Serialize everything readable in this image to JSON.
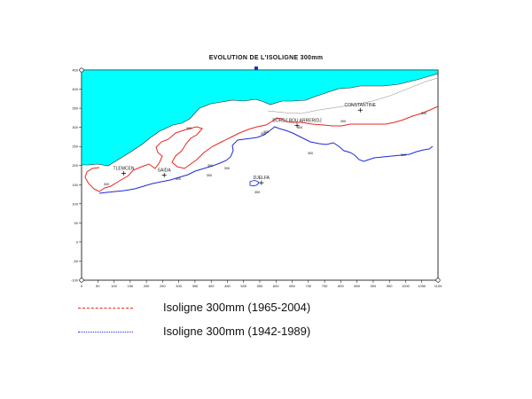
{
  "title": "EVOLUTION DE L'ISOLIGNE 300mm",
  "map": {
    "x_ticks": [
      "0",
      "50",
      "100",
      "150",
      "200",
      "250",
      "300",
      "350",
      "400",
      "450",
      "500",
      "550",
      "600",
      "650",
      "700",
      "750",
      "800",
      "850",
      "900",
      "950",
      "1000",
      "1050",
      "1100"
    ],
    "y_ticks": [
      "450",
      "400",
      "350",
      "300",
      "250",
      "200",
      "150",
      "100",
      "50",
      "0",
      "-50",
      "-100"
    ],
    "sea_color": "#00ffff",
    "series": [
      {
        "name": "Isoligne 300mm (1965-2004)",
        "color": "#e8271f"
      },
      {
        "name": "Isoligne 300mm (1942-1989)",
        "color": "#1c2bd6"
      }
    ],
    "contour_label": "300",
    "cities": [
      {
        "name": "TLEMCEN",
        "x": 130,
        "y": 180
      },
      {
        "name": "SAIDA",
        "x": 255,
        "y": 175
      },
      {
        "name": "DJELFA",
        "x": 555,
        "y": 155
      },
      {
        "name": "BORDJ BOU ARRERIDJ",
        "x": 665,
        "y": 305
      },
      {
        "name": "CONSTANTINE",
        "x": 860,
        "y": 345
      }
    ]
  },
  "legend": [
    {
      "label": "Isoligne 300mm (1965-2004)",
      "color": "#e8271f"
    },
    {
      "label": "Isoligne 300mm (1942-1989)",
      "color": "#1c2bd6"
    }
  ]
}
